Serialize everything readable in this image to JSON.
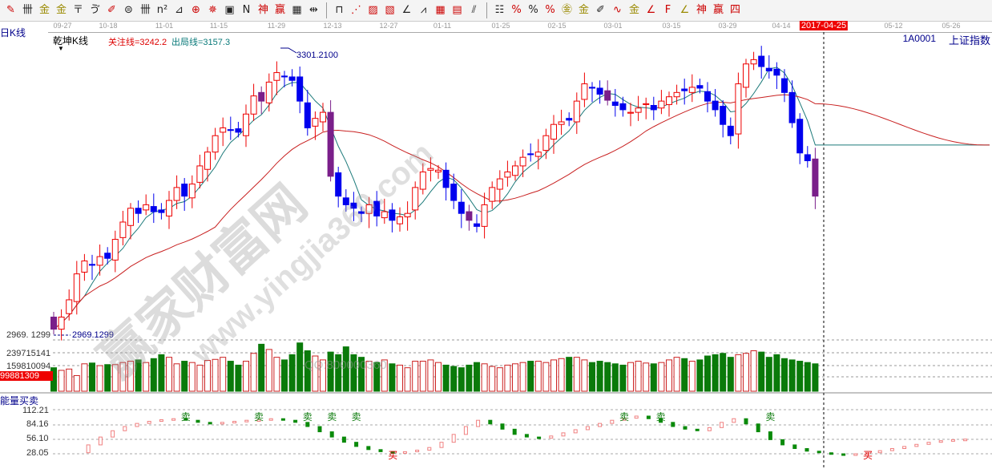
{
  "toolbar": {
    "icons": [
      {
        "name": "pen-icon",
        "g": "✎",
        "c": "r"
      },
      {
        "name": "grid-icon",
        "g": "卌",
        "c": ""
      },
      {
        "name": "gold-icon",
        "g": "金",
        "c": "y"
      },
      {
        "name": "gold2-icon",
        "g": "金",
        "c": "y"
      },
      {
        "name": "tf-icon",
        "g": "〒",
        "c": ""
      },
      {
        "name": "spiral-icon",
        "g": "ゔ",
        "c": ""
      },
      {
        "name": "brush-icon",
        "g": "✐",
        "c": "r"
      },
      {
        "name": "circle-grid-icon",
        "g": "⊜",
        "c": ""
      },
      {
        "name": "lines-icon",
        "g": "卌",
        "c": ""
      },
      {
        "name": "n2-icon",
        "g": "n²",
        "c": ""
      },
      {
        "name": "angle-icon",
        "g": "⊿",
        "c": ""
      },
      {
        "name": "target-icon",
        "g": "⊕",
        "c": "r"
      },
      {
        "name": "star-icon",
        "g": "✵",
        "c": "r"
      },
      {
        "name": "square-icon",
        "g": "▣",
        "c": ""
      },
      {
        "name": "n-icon",
        "g": "N",
        "c": ""
      },
      {
        "name": "shen-icon",
        "g": "神",
        "c": "r"
      },
      {
        "name": "ying-icon",
        "g": "赢",
        "c": "r"
      },
      {
        "name": "ruler-icon",
        "g": "▦",
        "c": ""
      },
      {
        "name": "split-icon",
        "g": "⇹",
        "c": ""
      },
      {
        "sep": true
      },
      {
        "name": "box-icon",
        "g": "⊓",
        "c": ""
      },
      {
        "name": "fan-icon",
        "g": "⋰",
        "c": "r"
      },
      {
        "name": "fan-box-icon",
        "g": "▨",
        "c": "r"
      },
      {
        "name": "fan-box2-icon",
        "g": "▧",
        "c": "r"
      },
      {
        "name": "angle-line-icon",
        "g": "∠",
        "c": ""
      },
      {
        "name": "wave-icon",
        "g": "⩘",
        "c": ""
      },
      {
        "name": "table-icon",
        "g": "▦",
        "c": "r"
      },
      {
        "name": "table2-icon",
        "g": "▤",
        "c": "r"
      },
      {
        "name": "slash-lines-icon",
        "g": "⫽",
        "c": ""
      },
      {
        "sep": true
      },
      {
        "name": "bars-icon",
        "g": "☷",
        "c": ""
      },
      {
        "name": "percent-line-icon",
        "g": "%",
        "c": "r"
      },
      {
        "name": "percent-icon",
        "g": "%",
        "c": ""
      },
      {
        "name": "percent-lines-icon",
        "g": "%",
        "c": "r"
      },
      {
        "name": "gold-circle-icon",
        "g": "㊎",
        "c": "y"
      },
      {
        "name": "gold-lines-icon",
        "g": "金",
        "c": "y"
      },
      {
        "name": "brush2-icon",
        "g": "✐",
        "c": ""
      },
      {
        "name": "wave2-icon",
        "g": "∿",
        "c": "r"
      },
      {
        "name": "gold3-icon",
        "g": "金",
        "c": "y"
      },
      {
        "name": "j-angle-icon",
        "g": "∠",
        "c": "r"
      },
      {
        "name": "f-angle-icon",
        "g": "F",
        "c": "r"
      },
      {
        "name": "gold-angle-icon",
        "g": "∠",
        "c": "y"
      },
      {
        "name": "shen-angle-icon",
        "g": "神",
        "c": "r"
      },
      {
        "name": "ying-angle-icon",
        "g": "赢",
        "c": "r"
      },
      {
        "name": "four-angle-icon",
        "g": "四",
        "c": "r"
      }
    ]
  },
  "date_axis": {
    "ticks": [
      "09-27",
      "10-18",
      "11-01",
      "11-15",
      "11-29",
      "12-13",
      "12-27",
      "01-11",
      "01-25",
      "02-15",
      "03-01",
      "03-15",
      "03-29",
      "04-14",
      "05-12",
      "05-26"
    ],
    "current": "2017-04-25"
  },
  "header": {
    "period": "日K线",
    "indicator": "乾坤K线",
    "focus_line": "关注线=3242.2",
    "exit_line": "出局线=3157.3",
    "symbol": "1A0001",
    "name": "上证指数"
  },
  "watermark": {
    "text": "赢家财富网",
    "url": "www.yingjia360.com",
    "qq": "QQ:800000360"
  },
  "colors": {
    "up": "#ee0000",
    "down": "#0000ee",
    "purple": "#7a1f8a",
    "ma_short": "#1c7a7a",
    "ma_long": "#c82020",
    "vol_up": "#cc2222",
    "vol_down": "#0a7a0a"
  },
  "chart_data": {
    "type": "candlestick",
    "price_high": "3301.2100",
    "price_low": "2969.1299",
    "y_low_label": "2969. 1299",
    "closes": [
      2976,
      2990,
      3010,
      3040,
      3055,
      3050,
      3060,
      3058,
      3080,
      3100,
      3116,
      3110,
      3120,
      3112,
      3111,
      3125,
      3140,
      3130,
      3144,
      3165,
      3181,
      3200,
      3209,
      3206,
      3204,
      3225,
      3246,
      3240,
      3262,
      3273,
      3268,
      3264,
      3240,
      3209,
      3220,
      3227,
      3153,
      3130,
      3120,
      3116,
      3110,
      3120,
      3107,
      3112,
      3102,
      3106,
      3110,
      3140,
      3158,
      3162,
      3160,
      3140,
      3125,
      3110,
      3102,
      3095,
      3120,
      3140,
      3150,
      3158,
      3165,
      3175,
      3178,
      3181,
      3200,
      3213,
      3216,
      3218,
      3240,
      3260,
      3255,
      3248,
      3241,
      3235,
      3230,
      3227,
      3232,
      3237,
      3230,
      3240,
      3245,
      3250,
      3252,
      3256,
      3255,
      3240,
      3230,
      3213,
      3200,
      3260,
      3283,
      3288,
      3280,
      3275,
      3270,
      3250,
      3215,
      3180,
      3171,
      3130
    ],
    "volume": {
      "labels": [
        "239715141",
        "159810094"
      ],
      "current": "99881309",
      "values": [
        150,
        140,
        145,
        120,
        165,
        168,
        158,
        162,
        162,
        170,
        175,
        180,
        170,
        185,
        200,
        190,
        165,
        175,
        170,
        160,
        178,
        182,
        190,
        175,
        160,
        175,
        205,
        240,
        220,
        190,
        180,
        200,
        245,
        215,
        195,
        180,
        210,
        200,
        230,
        200,
        190,
        175,
        170,
        180,
        165,
        160,
        150,
        175,
        175,
        180,
        170,
        160,
        155,
        150,
        160,
        170,
        165,
        155,
        150,
        160,
        165,
        170,
        175,
        175,
        170,
        180,
        185,
        190,
        190,
        180,
        170,
        175,
        170,
        165,
        160,
        170,
        175,
        168,
        165,
        170,
        180,
        190,
        185,
        175,
        180,
        195,
        200,
        205,
        190,
        200,
        205,
        215,
        210,
        190,
        200,
        185,
        180,
        175,
        170,
        165
      ]
    },
    "energy": {
      "title": "能量买卖",
      "ticks": [
        "112.21",
        "84.16",
        "56.10",
        "28.05"
      ],
      "values": [
        30,
        45,
        60,
        72,
        80,
        86,
        90,
        93,
        95,
        92,
        88,
        85,
        88,
        90,
        92,
        93,
        95,
        92,
        88,
        80,
        70,
        60,
        50,
        42,
        36,
        32,
        30,
        32,
        35,
        40,
        50,
        65,
        80,
        92,
        85,
        75,
        65,
        60,
        58,
        62,
        68,
        74,
        80,
        86,
        92,
        96,
        100,
        95,
        88,
        80,
        75,
        72,
        78,
        88,
        95,
        85,
        70,
        55,
        45,
        38,
        33,
        30,
        28,
        26,
        28,
        30,
        34,
        38,
        42,
        46,
        50,
        53,
        55,
        56
      ],
      "signals": [
        {
          "i": 9,
          "label": "卖"
        },
        {
          "i": 15,
          "label": "卖"
        },
        {
          "i": 19,
          "label": "卖"
        },
        {
          "i": 21,
          "label": "卖"
        },
        {
          "i": 23,
          "label": "卖"
        },
        {
          "i": 26,
          "label": "买"
        },
        {
          "i": 45,
          "label": "卖"
        },
        {
          "i": 48,
          "label": "卖"
        },
        {
          "i": 57,
          "label": "卖"
        },
        {
          "i": 65,
          "label": "买"
        }
      ]
    }
  }
}
